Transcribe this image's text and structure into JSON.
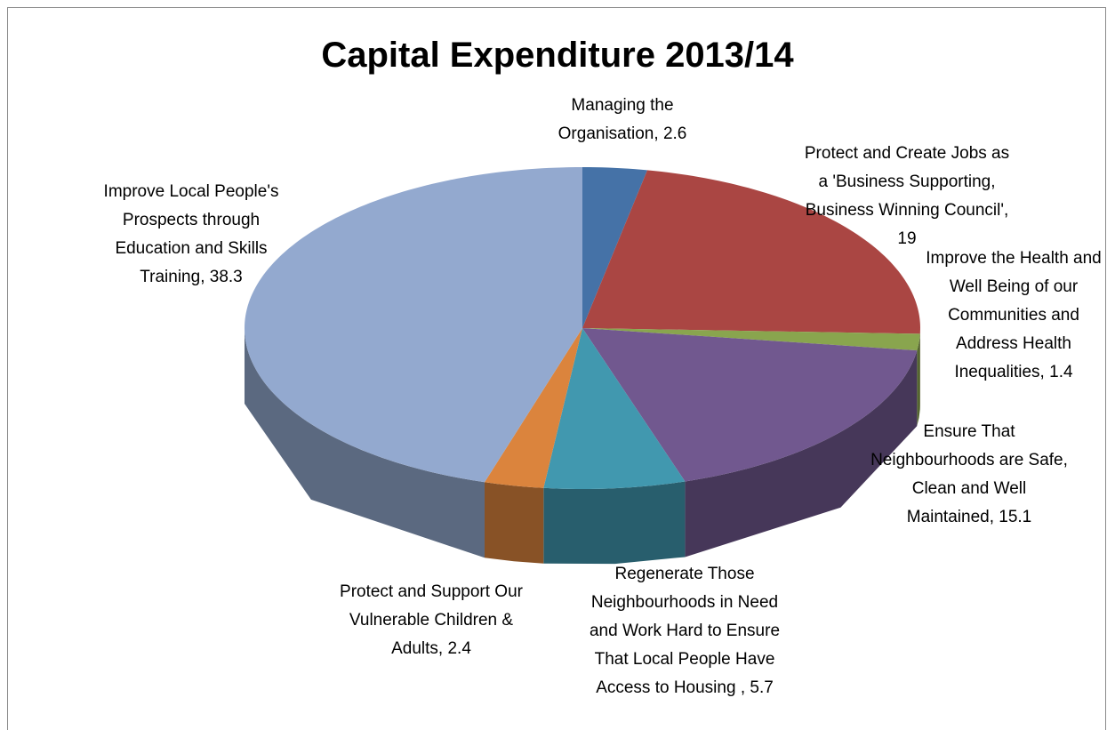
{
  "chart_data": {
    "type": "pie3d",
    "title": "Capital Expenditure 2013/14",
    "categories": [
      "Managing the Organisation,",
      "Protect and Create Jobs as a 'Business Supporting, Business Winning Council',",
      "Improve the Health and Well Being of our Communities and Address Health Inequalities,",
      "Ensure That Neighbourhoods are Safe, Clean and Well Maintained,",
      "Regenerate Those Neighbourhoods in Need and Work Hard to Ensure That Local People Have Access to Housing ,",
      "Protect and Support Our Vulnerable Children & Adults,",
      "Improve Local People's Prospects through Education and Skills Training,"
    ],
    "values": [
      2.6,
      19,
      1.4,
      15.1,
      5.7,
      2.4,
      38.3
    ],
    "colors": [
      "#4572a7",
      "#aa4643",
      "#89a54e",
      "#71588f",
      "#4198af",
      "#db843d",
      "#93a9cf"
    ]
  }
}
